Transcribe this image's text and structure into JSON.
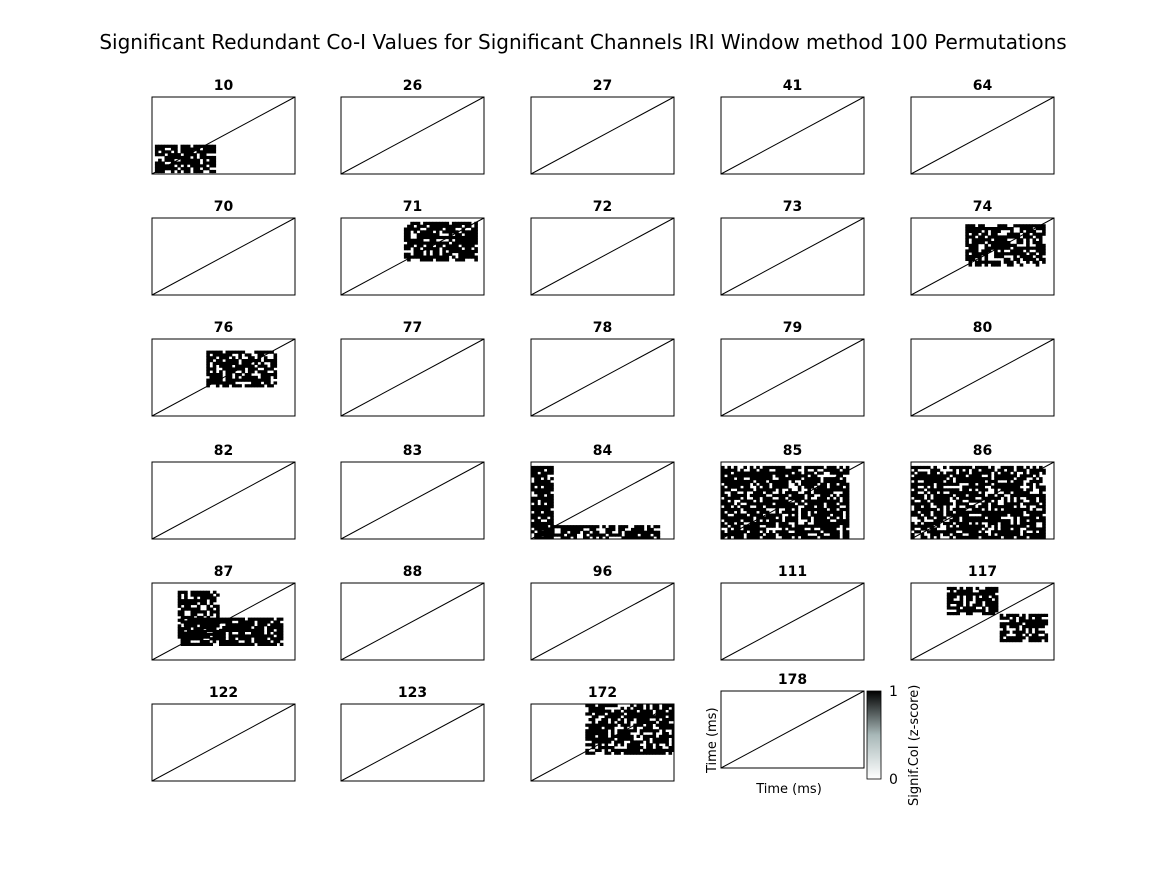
{
  "title": "Significant Redundant Co-I Values for Significant Channels IRI Window method 100 Permutations",
  "colors": {
    "blob": "#000000",
    "cbar_low": "#ffffff",
    "cbar_mid": "#a8b8b8",
    "cbar_high": "#000000"
  },
  "chart_data": {
    "type": "heatmap",
    "description_values": "per-panel significant CoI regions, value 0 (white) to 1 (black); regions given in normalized panel units",
    "panels": [
      {
        "label": "10",
        "regions": [
          [
            0.02,
            0.62,
            0.44,
            0.98
          ]
        ]
      },
      {
        "label": "26",
        "regions": []
      },
      {
        "label": "27",
        "regions": []
      },
      {
        "label": "41",
        "regions": []
      },
      {
        "label": "64",
        "regions": []
      },
      {
        "label": "70",
        "regions": []
      },
      {
        "label": "71",
        "regions": [
          [
            0.44,
            0.05,
            0.95,
            0.55
          ]
        ]
      },
      {
        "label": "72",
        "regions": []
      },
      {
        "label": "73",
        "regions": []
      },
      {
        "label": "74",
        "regions": [
          [
            0.38,
            0.08,
            0.93,
            0.62
          ]
        ]
      },
      {
        "label": "76",
        "regions": [
          [
            0.38,
            0.15,
            0.85,
            0.62
          ]
        ]
      },
      {
        "label": "77",
        "regions": []
      },
      {
        "label": "78",
        "regions": []
      },
      {
        "label": "79",
        "regions": []
      },
      {
        "label": "80",
        "regions": []
      },
      {
        "label": "82",
        "regions": []
      },
      {
        "label": "83",
        "regions": []
      },
      {
        "label": "84",
        "regions": [
          [
            0.0,
            0.05,
            0.15,
            0.98
          ],
          [
            0.05,
            0.82,
            0.9,
            0.99
          ]
        ]
      },
      {
        "label": "85",
        "regions": [
          [
            0.0,
            0.05,
            0.88,
            0.99
          ]
        ]
      },
      {
        "label": "86",
        "regions": [
          [
            0.0,
            0.05,
            0.93,
            0.99
          ]
        ]
      },
      {
        "label": "87",
        "regions": [
          [
            0.18,
            0.1,
            0.45,
            0.7
          ],
          [
            0.2,
            0.45,
            0.9,
            0.78
          ]
        ]
      },
      {
        "label": "88",
        "regions": []
      },
      {
        "label": "96",
        "regions": []
      },
      {
        "label": "111",
        "regions": []
      },
      {
        "label": "117",
        "regions": [
          [
            0.25,
            0.05,
            0.6,
            0.38
          ],
          [
            0.62,
            0.4,
            0.95,
            0.75
          ]
        ]
      },
      {
        "label": "122",
        "regions": []
      },
      {
        "label": "123",
        "regions": []
      },
      {
        "label": "172",
        "regions": [
          [
            0.38,
            0.0,
            1.0,
            0.62
          ]
        ]
      },
      {
        "label": "178",
        "regions": []
      }
    ],
    "xlabel": "Time (ms)",
    "ylabel": "Time (ms)",
    "colorbar": {
      "label": "Signif.CoI (z-score)",
      "min_label": "0",
      "max_label": "1"
    }
  }
}
